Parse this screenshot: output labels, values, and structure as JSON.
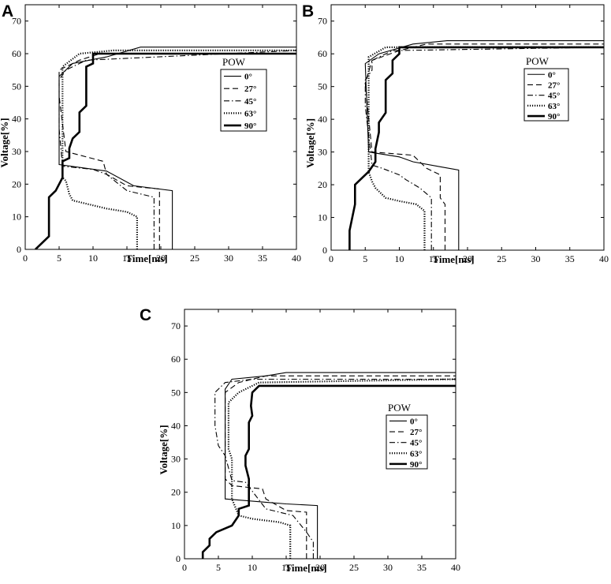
{
  "chart_data": [
    {
      "panel": "A",
      "type": "line",
      "xlabel": "Time[ms]",
      "ylabel": "Voltage[%]",
      "xlim": [
        0,
        40
      ],
      "ylim": [
        0,
        75
      ],
      "xticks": [
        0,
        5,
        10,
        15,
        20,
        25,
        30,
        35,
        40
      ],
      "yticks": [
        0,
        10,
        20,
        30,
        40,
        50,
        60,
        70
      ],
      "grid": false,
      "legend": {
        "title": "POW",
        "placement": "center-right"
      },
      "series": [
        {
          "name": "0°",
          "style": "solid-thin",
          "points": [
            [
              21.7,
              0
            ],
            [
              21.7,
              18
            ],
            [
              16,
              19.5
            ],
            [
              12,
              24
            ],
            [
              5,
              26
            ],
            [
              5,
              53
            ],
            [
              7,
              57
            ],
            [
              12,
              59
            ],
            [
              17,
              62
            ],
            [
              40,
              62
            ]
          ]
        },
        {
          "name": "27°",
          "style": "dashed",
          "points": [
            [
              19.8,
              0
            ],
            [
              19.8,
              18.5
            ],
            [
              15,
              19.5
            ],
            [
              12,
              23
            ],
            [
              11.5,
              27
            ],
            [
              6,
              30
            ],
            [
              5,
              47
            ],
            [
              5,
              55
            ],
            [
              8,
              58
            ],
            [
              11,
              60
            ],
            [
              40,
              60
            ]
          ]
        },
        {
          "name": "45°",
          "style": "dashdot",
          "points": [
            [
              19,
              0
            ],
            [
              19,
              16
            ],
            [
              15,
              18
            ],
            [
              12,
              23
            ],
            [
              10,
              24.5
            ],
            [
              5.5,
              25.5
            ],
            [
              5,
              37
            ],
            [
              5,
              52
            ],
            [
              6,
              55
            ],
            [
              9,
              58
            ],
            [
              40,
              61
            ]
          ]
        },
        {
          "name": "63°",
          "style": "dotted",
          "points": [
            [
              16.5,
              0
            ],
            [
              16.5,
              10
            ],
            [
              15,
              11.5
            ],
            [
              12,
              12.5
            ],
            [
              10,
              13.5
            ],
            [
              7,
              15
            ],
            [
              6.5,
              17
            ],
            [
              6,
              21
            ],
            [
              5.5,
              22
            ],
            [
              5.5,
              25
            ],
            [
              5.5,
              56
            ],
            [
              8,
              60
            ],
            [
              13,
              61
            ],
            [
              40,
              61
            ]
          ]
        },
        {
          "name": "90°",
          "style": "solid-thick",
          "points": [
            [
              1.5,
              0
            ],
            [
              3.5,
              4
            ],
            [
              3.5,
              16
            ],
            [
              4.5,
              18
            ],
            [
              5.5,
              22
            ],
            [
              5.5,
              27
            ],
            [
              6.5,
              28
            ],
            [
              6.5,
              31
            ],
            [
              7,
              34
            ],
            [
              8,
              36
            ],
            [
              8,
              42
            ],
            [
              9,
              44
            ],
            [
              9,
              56
            ],
            [
              10,
              57
            ],
            [
              10,
              60
            ],
            [
              40,
              60
            ]
          ]
        }
      ]
    },
    {
      "panel": "B",
      "type": "line",
      "xlabel": "Time[ms]",
      "ylabel": "Voltage[%]",
      "xlim": [
        0,
        40
      ],
      "ylim": [
        0,
        75
      ],
      "xticks": [
        0,
        5,
        10,
        15,
        20,
        25,
        30,
        35,
        40
      ],
      "yticks": [
        0,
        10,
        20,
        30,
        40,
        50,
        60,
        70
      ],
      "grid": false,
      "legend": {
        "title": "POW",
        "placement": "center-right"
      },
      "series": [
        {
          "name": "0°",
          "style": "solid-thin",
          "points": [
            [
              18.7,
              0
            ],
            [
              18.7,
              24.5
            ],
            [
              16,
              25.5
            ],
            [
              12,
              27
            ],
            [
              10,
              28.5
            ],
            [
              5.5,
              30
            ],
            [
              5,
              57
            ],
            [
              7,
              60
            ],
            [
              12,
              63
            ],
            [
              17,
              64
            ],
            [
              40,
              64
            ]
          ]
        },
        {
          "name": "27°",
          "style": "dashed",
          "points": [
            [
              16.7,
              0
            ],
            [
              16.7,
              14
            ],
            [
              16,
              16
            ],
            [
              16,
              23
            ],
            [
              14,
              25
            ],
            [
              12,
              29
            ],
            [
              6,
              30
            ],
            [
              5,
              51
            ],
            [
              6,
              58
            ],
            [
              10,
              61
            ],
            [
              14,
              63
            ],
            [
              40,
              63
            ]
          ]
        },
        {
          "name": "45°",
          "style": "dashdot",
          "points": [
            [
              14.7,
              0
            ],
            [
              14.7,
              16
            ],
            [
              13,
              19
            ],
            [
              11,
              21.5
            ],
            [
              10,
              23
            ],
            [
              7.5,
              25
            ],
            [
              6,
              26
            ],
            [
              5,
              44
            ],
            [
              5,
              52
            ],
            [
              6,
              55
            ],
            [
              6,
              58
            ],
            [
              9,
              61
            ],
            [
              40,
              62
            ]
          ]
        },
        {
          "name": "63°",
          "style": "dotted",
          "points": [
            [
              13.7,
              0
            ],
            [
              13.7,
              12
            ],
            [
              12.5,
              14
            ],
            [
              10,
              15
            ],
            [
              8,
              16
            ],
            [
              6.5,
              19
            ],
            [
              6,
              21
            ],
            [
              5.5,
              24
            ],
            [
              5.5,
              59
            ],
            [
              8,
              62
            ],
            [
              40,
              62
            ]
          ]
        },
        {
          "name": "90°",
          "style": "solid-thick",
          "points": [
            [
              2.7,
              0
            ],
            [
              2.7,
              6
            ],
            [
              3.5,
              14
            ],
            [
              3.5,
              20
            ],
            [
              4.5,
              22
            ],
            [
              5.5,
              24
            ],
            [
              6.5,
              27
            ],
            [
              6.5,
              31
            ],
            [
              7,
              36
            ],
            [
              7,
              39
            ],
            [
              8,
              42
            ],
            [
              8,
              52
            ],
            [
              9,
              54
            ],
            [
              9,
              58
            ],
            [
              10,
              60
            ],
            [
              10,
              62
            ],
            [
              40,
              62
            ]
          ]
        }
      ]
    },
    {
      "panel": "C",
      "type": "line",
      "xlabel": "Time[ms]",
      "ylabel": "Voltage[%]",
      "xlim": [
        0,
        40
      ],
      "ylim": [
        0,
        75
      ],
      "xticks": [
        0,
        5,
        10,
        15,
        20,
        25,
        30,
        35,
        40
      ],
      "yticks": [
        0,
        10,
        20,
        30,
        40,
        50,
        60,
        70
      ],
      "grid": false,
      "legend": {
        "title": "POW",
        "placement": "center-right"
      },
      "series": [
        {
          "name": "0°",
          "style": "solid-thin",
          "points": [
            [
              19.6,
              0
            ],
            [
              19.6,
              16
            ],
            [
              15,
              16.5
            ],
            [
              12,
              17
            ],
            [
              6,
              18
            ],
            [
              6,
              51
            ],
            [
              7,
              54
            ],
            [
              12,
              55
            ],
            [
              15,
              56
            ],
            [
              40,
              56
            ]
          ]
        },
        {
          "name": "27°",
          "style": "dashed",
          "points": [
            [
              18,
              0
            ],
            [
              18,
              14
            ],
            [
              15,
              14.5
            ],
            [
              12,
              18
            ],
            [
              11.5,
              21
            ],
            [
              7,
              22
            ],
            [
              6,
              24
            ],
            [
              6,
              50
            ],
            [
              8,
              53
            ],
            [
              12,
              55
            ],
            [
              40,
              55
            ]
          ]
        },
        {
          "name": "45°",
          "style": "dashdot",
          "points": [
            [
              19,
              0
            ],
            [
              19,
              5
            ],
            [
              18,
              8
            ],
            [
              16,
              13
            ],
            [
              12,
              15
            ],
            [
              9,
              23
            ],
            [
              7,
              23.5
            ],
            [
              6,
              31
            ],
            [
              5,
              34
            ],
            [
              4.5,
              40
            ],
            [
              4.5,
              50
            ],
            [
              6,
              53
            ],
            [
              10,
              54
            ],
            [
              40,
              54
            ]
          ]
        },
        {
          "name": "63°",
          "style": "dotted",
          "points": [
            [
              15.6,
              0
            ],
            [
              15.6,
              10
            ],
            [
              14,
              11
            ],
            [
              10,
              12
            ],
            [
              8,
              13
            ],
            [
              7,
              18
            ],
            [
              7,
              30
            ],
            [
              6.5,
              33
            ],
            [
              6.5,
              47
            ],
            [
              8,
              50
            ],
            [
              11,
              53
            ],
            [
              40,
              54
            ]
          ]
        },
        {
          "name": "90°",
          "style": "solid-thick",
          "points": [
            [
              2.7,
              0
            ],
            [
              2.7,
              2
            ],
            [
              3.7,
              4
            ],
            [
              3.7,
              6
            ],
            [
              4.7,
              8
            ],
            [
              7,
              10
            ],
            [
              8,
              13
            ],
            [
              8,
              15
            ],
            [
              9.5,
              16
            ],
            [
              9.5,
              20
            ],
            [
              9.5,
              24
            ],
            [
              9,
              28
            ],
            [
              9,
              31
            ],
            [
              9.5,
              33
            ],
            [
              9.5,
              41
            ],
            [
              10,
              43
            ],
            [
              9.8,
              46
            ],
            [
              10,
              50
            ],
            [
              11,
              52
            ],
            [
              40,
              52
            ]
          ]
        }
      ]
    }
  ]
}
